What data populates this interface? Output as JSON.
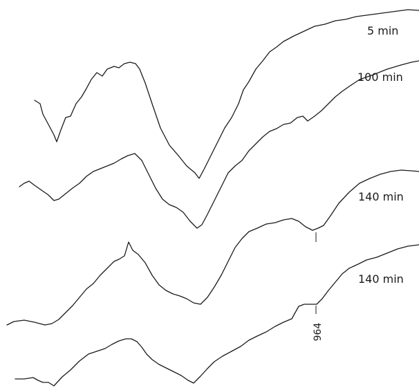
{
  "chart_data": {
    "type": "line",
    "title": "",
    "xlabel": "",
    "ylabel": "",
    "grid": false,
    "legend": "none",
    "series": [
      {
        "name": "5 min",
        "points": [
          [
            50,
            145
          ],
          [
            58,
            150
          ],
          [
            62,
            165
          ],
          [
            70,
            180
          ],
          [
            78,
            195
          ],
          [
            82,
            205
          ],
          [
            88,
            188
          ],
          [
            95,
            170
          ],
          [
            102,
            168
          ],
          [
            110,
            150
          ],
          [
            118,
            140
          ],
          [
            125,
            128
          ],
          [
            132,
            115
          ],
          [
            140,
            105
          ],
          [
            148,
            110
          ],
          [
            155,
            100
          ],
          [
            165,
            96
          ],
          [
            172,
            98
          ],
          [
            180,
            92
          ],
          [
            188,
            90
          ],
          [
            196,
            92
          ],
          [
            202,
            100
          ],
          [
            210,
            120
          ],
          [
            220,
            150
          ],
          [
            232,
            185
          ],
          [
            245,
            210
          ],
          [
            258,
            225
          ],
          [
            270,
            240
          ],
          [
            282,
            250
          ],
          [
            288,
            258
          ],
          [
            295,
            245
          ],
          [
            305,
            225
          ],
          [
            315,
            205
          ],
          [
            325,
            185
          ],
          [
            335,
            170
          ],
          [
            345,
            150
          ],
          [
            352,
            130
          ],
          [
            360,
            118
          ],
          [
            370,
            100
          ],
          [
            380,
            88
          ],
          [
            390,
            75
          ],
          [
            400,
            68
          ],
          [
            410,
            60
          ],
          [
            425,
            52
          ],
          [
            440,
            45
          ],
          [
            455,
            38
          ],
          [
            470,
            35
          ],
          [
            485,
            30
          ],
          [
            500,
            28
          ],
          [
            515,
            24
          ],
          [
            530,
            22
          ],
          [
            545,
            20
          ],
          [
            560,
            18
          ],
          [
            575,
            16
          ],
          [
            590,
            14
          ],
          [
            606,
            15
          ]
        ]
      },
      {
        "name": "100 min",
        "points": [
          [
            28,
            270
          ],
          [
            35,
            265
          ],
          [
            42,
            262
          ],
          [
            50,
            268
          ],
          [
            60,
            275
          ],
          [
            70,
            282
          ],
          [
            78,
            290
          ],
          [
            85,
            288
          ],
          [
            95,
            280
          ],
          [
            105,
            272
          ],
          [
            115,
            265
          ],
          [
            125,
            255
          ],
          [
            135,
            248
          ],
          [
            145,
            244
          ],
          [
            155,
            240
          ],
          [
            165,
            236
          ],
          [
            175,
            230
          ],
          [
            185,
            225
          ],
          [
            195,
            222
          ],
          [
            205,
            232
          ],
          [
            215,
            252
          ],
          [
            225,
            272
          ],
          [
            235,
            288
          ],
          [
            245,
            296
          ],
          [
            255,
            300
          ],
          [
            265,
            307
          ],
          [
            275,
            320
          ],
          [
            285,
            330
          ],
          [
            292,
            325
          ],
          [
            300,
            310
          ],
          [
            310,
            290
          ],
          [
            320,
            270
          ],
          [
            330,
            250
          ],
          [
            340,
            240
          ],
          [
            350,
            232
          ],
          [
            360,
            218
          ],
          [
            370,
            208
          ],
          [
            380,
            198
          ],
          [
            390,
            190
          ],
          [
            400,
            186
          ],
          [
            410,
            180
          ],
          [
            420,
            178
          ],
          [
            430,
            170
          ],
          [
            438,
            168
          ],
          [
            445,
            175
          ],
          [
            455,
            168
          ],
          [
            465,
            160
          ],
          [
            475,
            150
          ],
          [
            485,
            140
          ],
          [
            495,
            132
          ],
          [
            505,
            125
          ],
          [
            520,
            115
          ],
          [
            540,
            108
          ],
          [
            560,
            100
          ],
          [
            580,
            94
          ],
          [
            595,
            90
          ],
          [
            606,
            88
          ]
        ]
      },
      {
        "name": "140 min",
        "points": [
          [
            10,
            470
          ],
          [
            20,
            465
          ],
          [
            35,
            463
          ],
          [
            50,
            466
          ],
          [
            65,
            470
          ],
          [
            75,
            468
          ],
          [
            85,
            462
          ],
          [
            95,
            452
          ],
          [
            105,
            442
          ],
          [
            115,
            430
          ],
          [
            125,
            418
          ],
          [
            135,
            410
          ],
          [
            145,
            398
          ],
          [
            155,
            388
          ],
          [
            165,
            378
          ],
          [
            172,
            375
          ],
          [
            180,
            370
          ],
          [
            186,
            350
          ],
          [
            192,
            362
          ],
          [
            200,
            368
          ],
          [
            210,
            380
          ],
          [
            220,
            398
          ],
          [
            230,
            412
          ],
          [
            240,
            420
          ],
          [
            250,
            425
          ],
          [
            260,
            428
          ],
          [
            270,
            432
          ],
          [
            280,
            438
          ],
          [
            290,
            440
          ],
          [
            300,
            430
          ],
          [
            310,
            415
          ],
          [
            320,
            398
          ],
          [
            330,
            378
          ],
          [
            340,
            358
          ],
          [
            350,
            345
          ],
          [
            360,
            335
          ],
          [
            372,
            330
          ],
          [
            385,
            324
          ],
          [
            398,
            322
          ],
          [
            410,
            318
          ],
          [
            422,
            316
          ],
          [
            432,
            320
          ],
          [
            442,
            328
          ],
          [
            452,
            333
          ],
          [
            460,
            330
          ],
          [
            468,
            326
          ],
          [
            478,
            312
          ],
          [
            490,
            294
          ],
          [
            505,
            278
          ],
          [
            520,
            265
          ],
          [
            535,
            258
          ],
          [
            550,
            252
          ],
          [
            565,
            248
          ],
          [
            580,
            246
          ],
          [
            595,
            247
          ],
          [
            606,
            248
          ]
        ]
      },
      {
        "name": "140 min",
        "points": [
          [
            22,
            548
          ],
          [
            35,
            548
          ],
          [
            48,
            546
          ],
          [
            55,
            550
          ],
          [
            62,
            553
          ],
          [
            70,
            553
          ],
          [
            78,
            558
          ],
          [
            90,
            545
          ],
          [
            102,
            535
          ],
          [
            115,
            522
          ],
          [
            128,
            512
          ],
          [
            140,
            508
          ],
          [
            152,
            504
          ],
          [
            162,
            498
          ],
          [
            172,
            493
          ],
          [
            182,
            490
          ],
          [
            190,
            490
          ],
          [
            198,
            494
          ],
          [
            205,
            502
          ],
          [
            212,
            512
          ],
          [
            220,
            520
          ],
          [
            230,
            527
          ],
          [
            240,
            532
          ],
          [
            250,
            537
          ],
          [
            262,
            543
          ],
          [
            272,
            550
          ],
          [
            280,
            554
          ],
          [
            290,
            544
          ],
          [
            300,
            533
          ],
          [
            310,
            523
          ],
          [
            322,
            515
          ],
          [
            335,
            508
          ],
          [
            348,
            501
          ],
          [
            360,
            492
          ],
          [
            372,
            486
          ],
          [
            385,
            480
          ],
          [
            398,
            472
          ],
          [
            410,
            466
          ],
          [
            422,
            461
          ],
          [
            432,
            443
          ],
          [
            440,
            440
          ],
          [
            448,
            440
          ],
          [
            458,
            440
          ],
          [
            466,
            432
          ],
          [
            475,
            420
          ],
          [
            485,
            408
          ],
          [
            495,
            396
          ],
          [
            505,
            388
          ],
          [
            518,
            382
          ],
          [
            530,
            376
          ],
          [
            545,
            372
          ],
          [
            560,
            366
          ],
          [
            575,
            360
          ],
          [
            590,
            356
          ],
          [
            606,
            354
          ]
        ]
      }
    ],
    "labels": [
      "5 min",
      "100 min",
      "140 min",
      "140 min"
    ],
    "annotation": "964",
    "annotation_x": 457
  }
}
